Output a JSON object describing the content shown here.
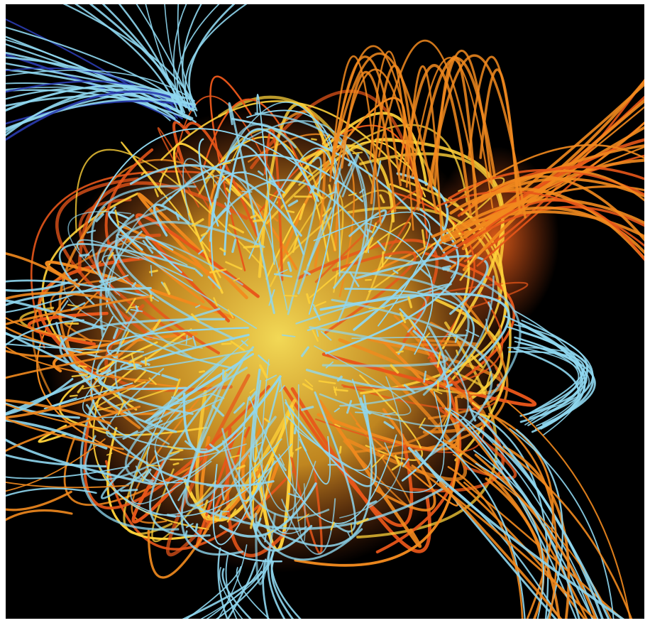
{
  "image": {
    "subject": "magnetic-field-lines-visualization",
    "colors": {
      "background": "#000000",
      "frame": "#ffffff",
      "open_field_lines": "#8fd7ef",
      "closed_field_lines": "#f28a1e",
      "hot_core": "#ffd23a",
      "deep_orange": "#e8561a",
      "dark_blue": "#2a3cb0"
    }
  }
}
